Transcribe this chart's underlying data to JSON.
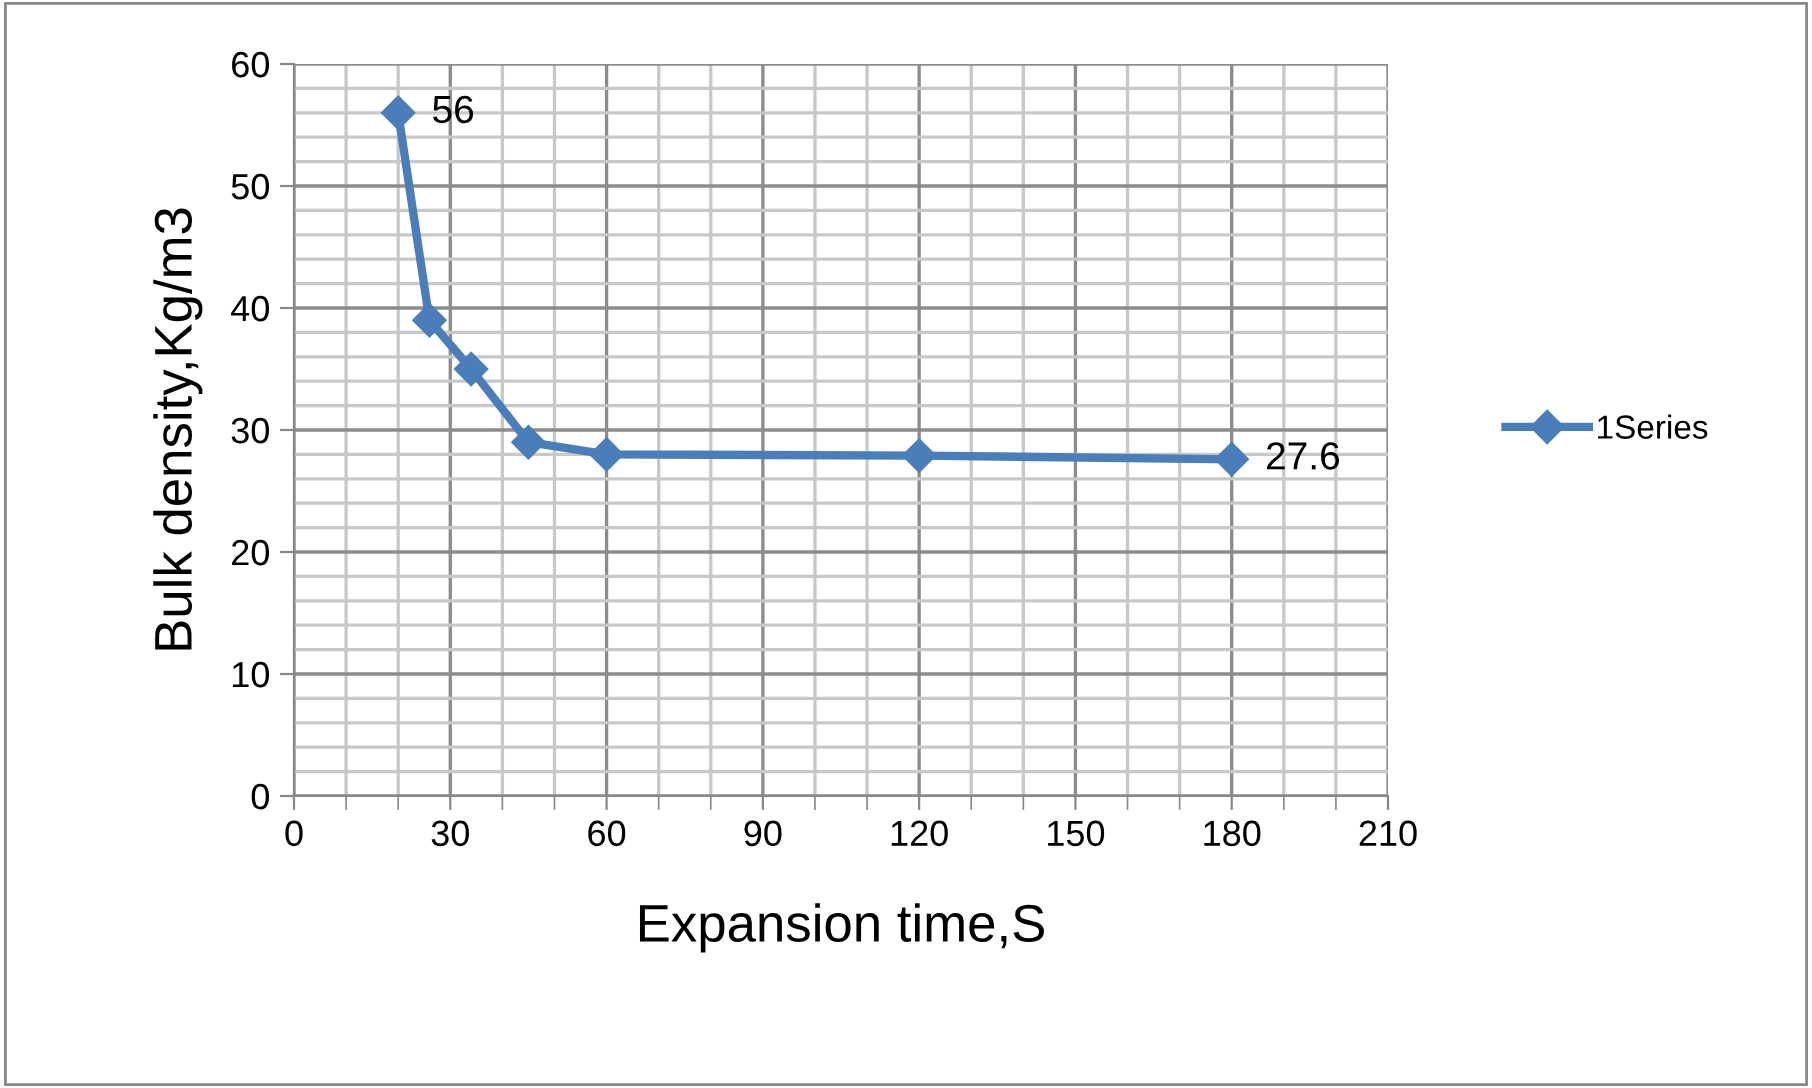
{
  "chart_data": {
    "type": "line",
    "xlabel": "Expansion time,S",
    "ylabel": "Bulk density,Kg/m3",
    "x": [
      20,
      26,
      34,
      45,
      60,
      120,
      180
    ],
    "series": [
      {
        "name": "1Series",
        "color": "#4a7ebb",
        "values": [
          56,
          39,
          35,
          29,
          28,
          27.9,
          27.6
        ],
        "value_labels": [
          "56",
          null,
          null,
          null,
          null,
          null,
          "27.6"
        ]
      }
    ],
    "xlim": [
      0,
      210
    ],
    "xticks": [
      0,
      30,
      60,
      90,
      120,
      150,
      180,
      210
    ],
    "ylim": [
      0,
      60
    ],
    "yticks": [
      0,
      10,
      20,
      30,
      40,
      50,
      60
    ],
    "grid": true,
    "legend": "right",
    "marker": "diamond",
    "line_style": "solid"
  }
}
